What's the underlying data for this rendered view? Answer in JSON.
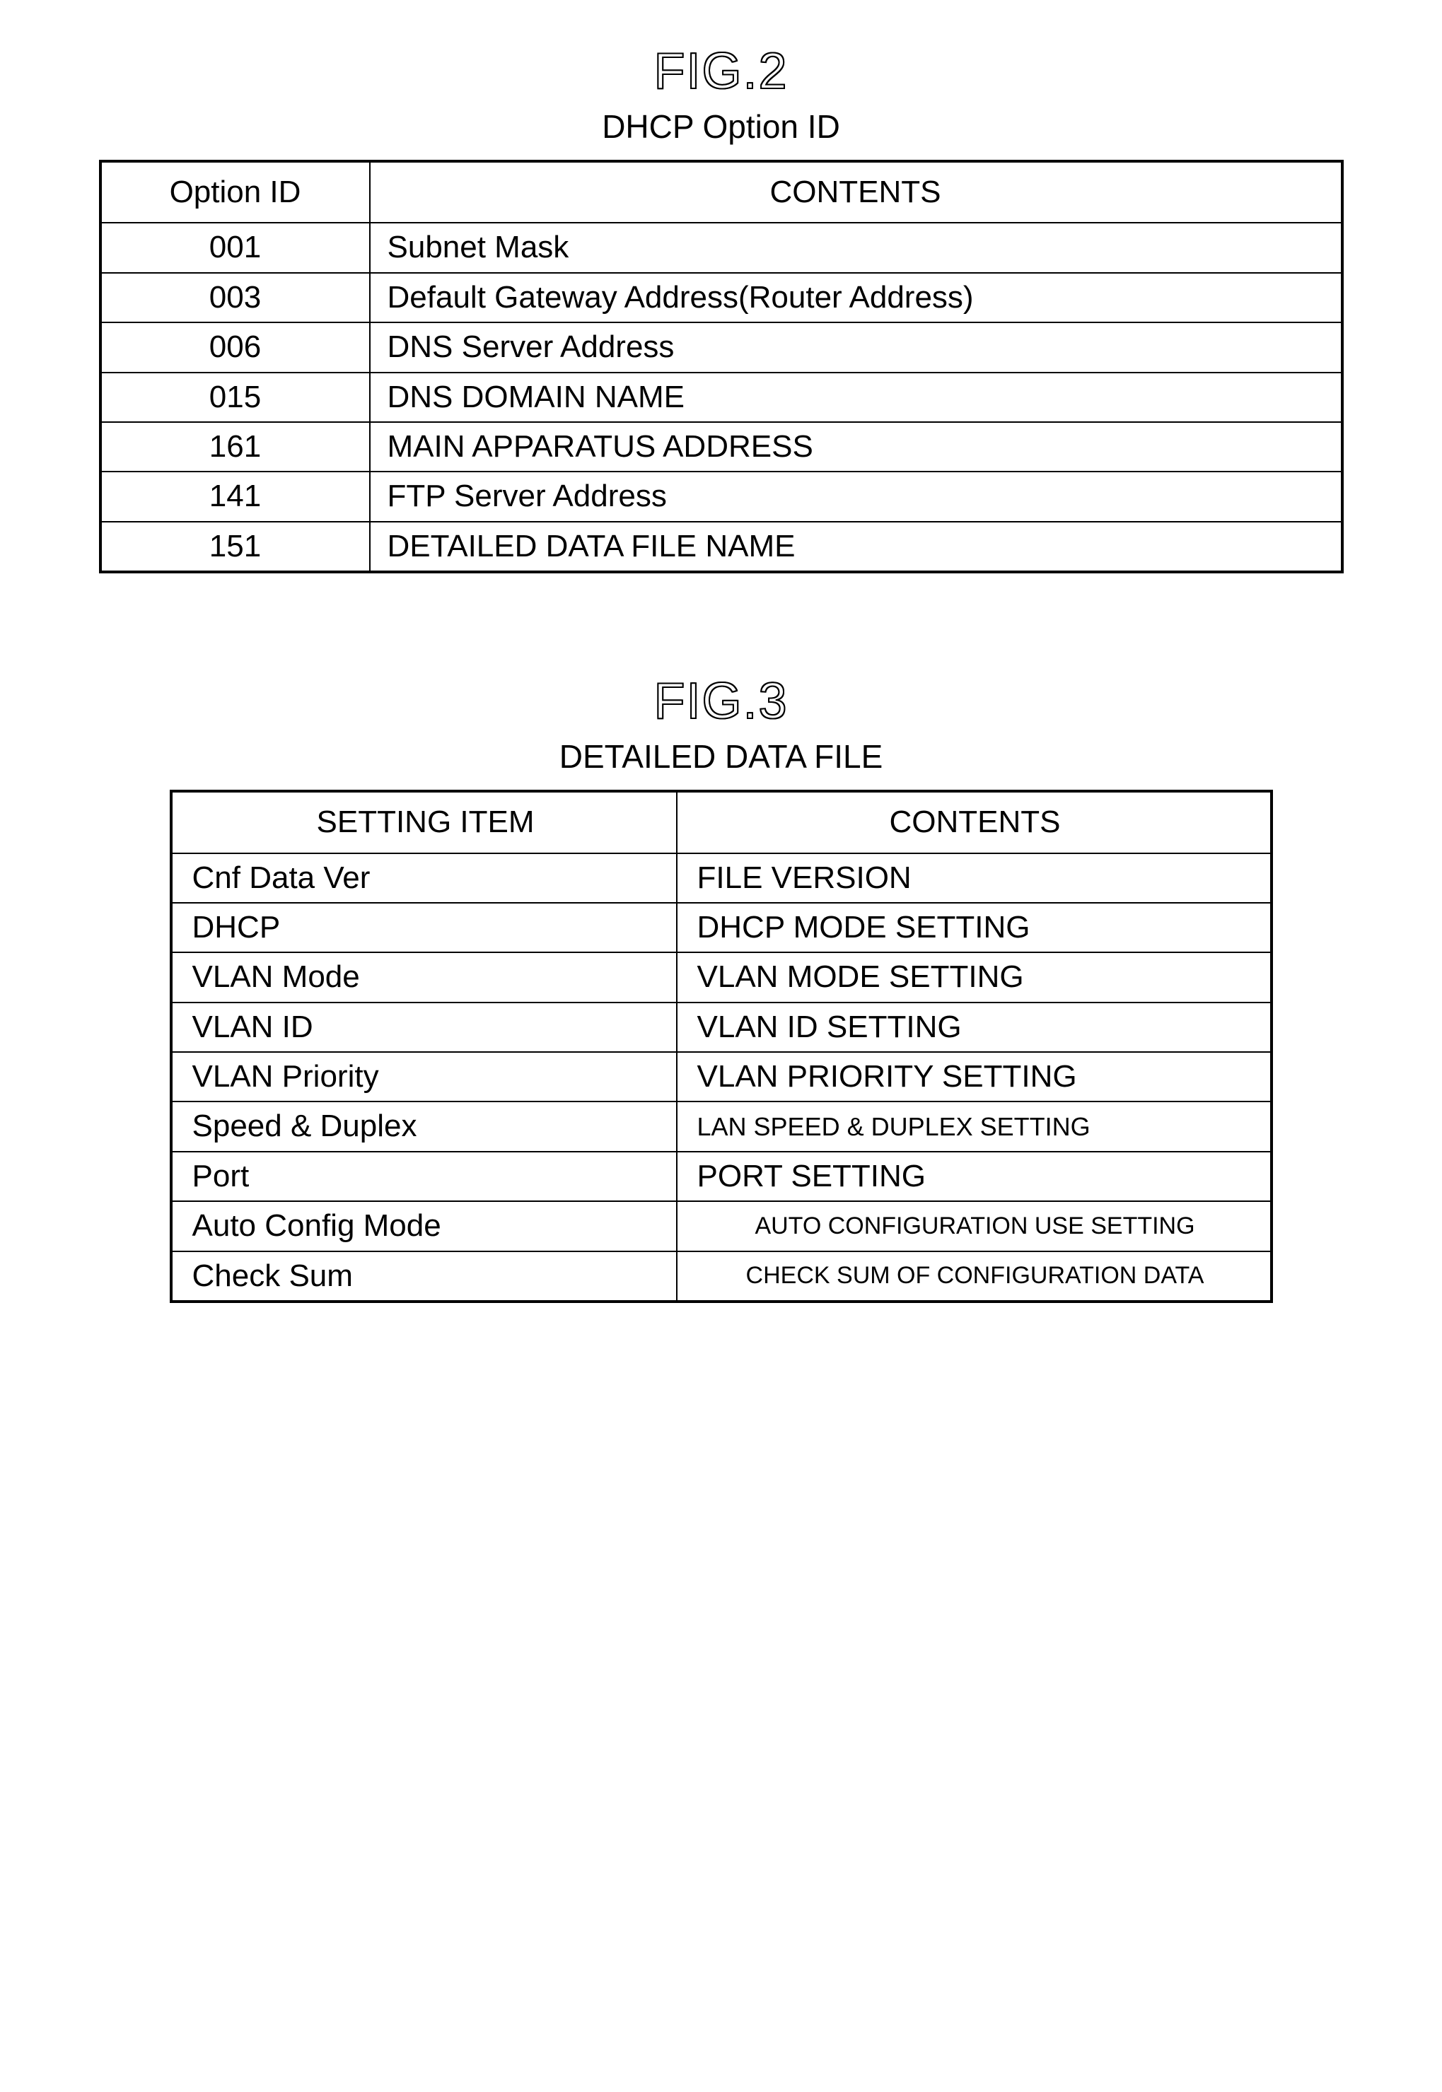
{
  "fig2": {
    "label": "FIG.2",
    "title": "DHCP Option ID",
    "columns": [
      "Option ID",
      "CONTENTS"
    ],
    "rows": [
      {
        "id": "001",
        "contents": "Subnet Mask"
      },
      {
        "id": "003",
        "contents": "Default Gateway Address(Router Address)"
      },
      {
        "id": "006",
        "contents": "DNS Server Address"
      },
      {
        "id": "015",
        "contents": "DNS DOMAIN NAME"
      },
      {
        "id": "161",
        "contents": "MAIN APPARATUS ADDRESS"
      },
      {
        "id": "141",
        "contents": "FTP Server Address"
      },
      {
        "id": "151",
        "contents": "DETAILED DATA FILE NAME"
      }
    ],
    "border_color": "#000000",
    "background_color": "#ffffff",
    "font_size_pt": 33,
    "label_font_size_pt": 54
  },
  "fig3": {
    "label": "FIG.3",
    "title": "DETAILED DATA FILE",
    "columns": [
      "SETTING ITEM",
      "CONTENTS"
    ],
    "rows": [
      {
        "item": "Cnf Data Ver",
        "contents": "FILE VERSION",
        "center": false,
        "size": ""
      },
      {
        "item": "DHCP",
        "contents": "DHCP MODE SETTING",
        "center": false,
        "size": ""
      },
      {
        "item": "VLAN Mode",
        "contents": "VLAN MODE SETTING",
        "center": false,
        "size": ""
      },
      {
        "item": "VLAN ID",
        "contents": "VLAN ID SETTING",
        "center": false,
        "size": ""
      },
      {
        "item": "VLAN Priority",
        "contents": "VLAN PRIORITY SETTING",
        "center": false,
        "size": ""
      },
      {
        "item": "Speed & Duplex",
        "contents": "LAN SPEED & DUPLEX SETTING",
        "center": false,
        "size": "small"
      },
      {
        "item": "Port",
        "contents": "PORT SETTING",
        "center": false,
        "size": ""
      },
      {
        "item": "Auto Config Mode",
        "contents": "AUTO CONFIGURATION USE SETTING",
        "center": true,
        "size": "xsmall"
      },
      {
        "item": "Check Sum",
        "contents": "CHECK SUM OF CONFIGURATION DATA",
        "center": true,
        "size": "xsmall"
      }
    ],
    "border_color": "#000000",
    "background_color": "#ffffff",
    "font_size_pt": 33,
    "label_font_size_pt": 54
  }
}
